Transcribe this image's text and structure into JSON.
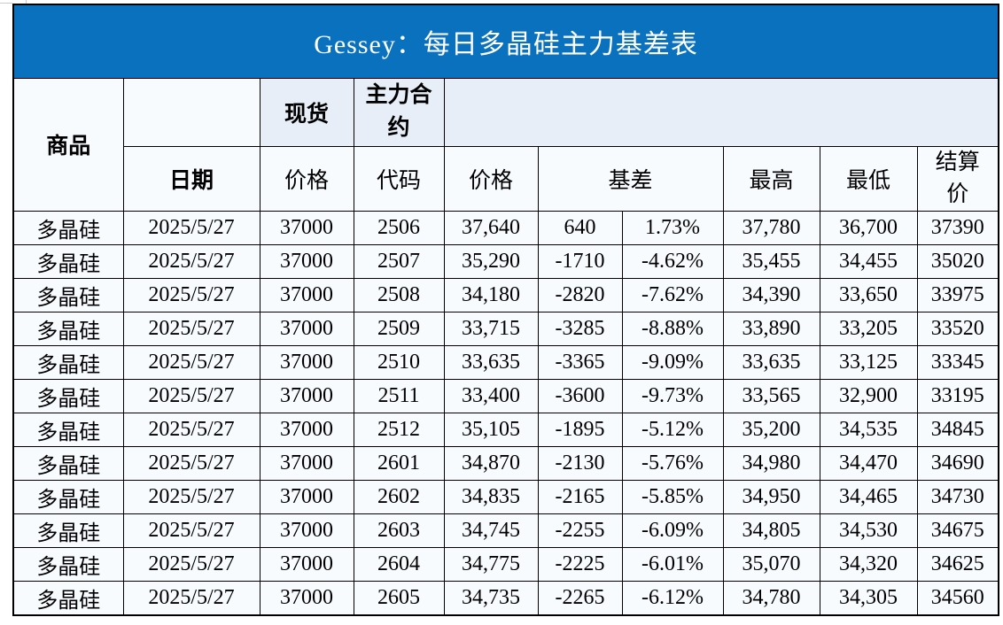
{
  "page": {
    "background": "#FFFFFF"
  },
  "title": {
    "text": "Gessey：每日多晶硅主力基差表"
  },
  "header": {
    "commodity": "商品",
    "date": "日期",
    "spot_group": "现货",
    "main_contract_group": "主力合约",
    "spot_price": "价格",
    "contract_code": "代码",
    "contract_price": "价格",
    "basis": "基差",
    "high": "最高",
    "low": "最低",
    "settlement_price": "结算价"
  },
  "colors": {
    "title_bar_bg": "#0971BD",
    "title_text": "#FFFFFF",
    "header_accent_bg": "#E7EEF8",
    "cell_bg": "#F8FBFE",
    "grid_border": "#000000",
    "commodity_link_text": "#3232CD",
    "date_text": "#4B73B4",
    "basis_green_text": "#12BC7C",
    "value_text": "#000000"
  },
  "chart_data": {
    "type": "table",
    "title": "Gessey：每日多晶硅主力基差表",
    "columns": [
      "商品",
      "日期",
      "现货价格",
      "主力合约代码",
      "主力合约价格",
      "基差",
      "基差%",
      "最高",
      "最低",
      "结算价"
    ],
    "rows": [
      [
        "多晶硅",
        "2025/5/27",
        "37000",
        "2506",
        "37,640",
        "640",
        "1.73%",
        "37,780",
        "36,700",
        "37390"
      ],
      [
        "多晶硅",
        "2025/5/27",
        "37000",
        "2507",
        "35,290",
        "-1710",
        "-4.62%",
        "35,455",
        "34,455",
        "35020"
      ],
      [
        "多晶硅",
        "2025/5/27",
        "37000",
        "2508",
        "34,180",
        "-2820",
        "-7.62%",
        "34,390",
        "33,650",
        "33975"
      ],
      [
        "多晶硅",
        "2025/5/27",
        "37000",
        "2509",
        "33,715",
        "-3285",
        "-8.88%",
        "33,890",
        "33,205",
        "33520"
      ],
      [
        "多晶硅",
        "2025/5/27",
        "37000",
        "2510",
        "33,635",
        "-3365",
        "-9.09%",
        "33,635",
        "33,125",
        "33345"
      ],
      [
        "多晶硅",
        "2025/5/27",
        "37000",
        "2511",
        "33,400",
        "-3600",
        "-9.73%",
        "33,565",
        "32,900",
        "33195"
      ],
      [
        "多晶硅",
        "2025/5/27",
        "37000",
        "2512",
        "35,105",
        "-1895",
        "-5.12%",
        "35,200",
        "34,535",
        "34845"
      ],
      [
        "多晶硅",
        "2025/5/27",
        "37000",
        "2601",
        "34,870",
        "-2130",
        "-5.76%",
        "34,980",
        "34,470",
        "34690"
      ],
      [
        "多晶硅",
        "2025/5/27",
        "37000",
        "2602",
        "34,835",
        "-2165",
        "-5.85%",
        "34,950",
        "34,465",
        "34730"
      ],
      [
        "多晶硅",
        "2025/5/27",
        "37000",
        "2603",
        "34,745",
        "-2255",
        "-6.09%",
        "34,805",
        "34,530",
        "34675"
      ],
      [
        "多晶硅",
        "2025/5/27",
        "37000",
        "2604",
        "34,775",
        "-2225",
        "-6.01%",
        "35,070",
        "34,320",
        "34625"
      ],
      [
        "多晶硅",
        "2025/5/27",
        "37000",
        "2605",
        "34,735",
        "-2265",
        "-6.12%",
        "34,780",
        "34,305",
        "34560"
      ]
    ]
  }
}
